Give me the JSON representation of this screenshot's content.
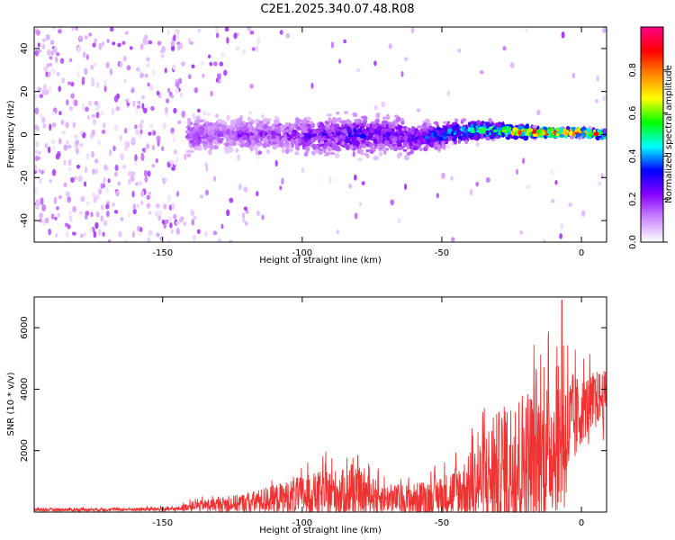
{
  "title": "C2E1.2025.340.07.48.R08",
  "chart_data": [
    {
      "type": "heatmap",
      "xlabel": "Height of straight line (km)",
      "ylabel": "Frequency (Hz)",
      "xlim": [
        -196,
        9
      ],
      "ylim": [
        -50,
        50
      ],
      "xticks": [
        -150,
        -100,
        -50,
        0
      ],
      "yticks": [
        -40,
        -20,
        0,
        20,
        40
      ],
      "description": "Normalized spectral amplitude vs height; scattered noise below -140 km, band converging to ~0 Hz and peaking near amplitude 1.0 at -20..0 km",
      "colorbar": {
        "label": "Normalized spectral amplitude",
        "range": [
          0.0,
          1.0
        ],
        "ticks": [
          "0.0",
          "0.2",
          "0.4",
          "0.6",
          "0.8"
        ],
        "colors": [
          "#ffffff",
          "#cc88ff",
          "#8800ff",
          "#0000ff",
          "#00ffff",
          "#00ff00",
          "#ffff00",
          "#ff8800",
          "#ff0000",
          "#ff0088"
        ]
      },
      "band": {
        "x": [
          -140,
          -130,
          -120,
          -110,
          -100,
          -90,
          -80,
          -70,
          -60,
          -50,
          -40,
          -30,
          -20,
          -10,
          0,
          8
        ],
        "center_hz": [
          0,
          0,
          0,
          0,
          -1,
          0,
          0,
          0,
          -2,
          0,
          2,
          2,
          1,
          1,
          1,
          0
        ],
        "halfwidth_hz": [
          9,
          8,
          8,
          8,
          9,
          9,
          10,
          9,
          8,
          6,
          5,
          4,
          3,
          2,
          2,
          2
        ],
        "amplitude": [
          0.2,
          0.18,
          0.2,
          0.2,
          0.25,
          0.28,
          0.3,
          0.28,
          0.3,
          0.4,
          0.5,
          0.6,
          0.85,
          0.9,
          0.95,
          0.7
        ]
      }
    },
    {
      "type": "line",
      "xlabel": "Height of straight line (km)",
      "ylabel": "SNR (10 * v/v)",
      "xlim": [
        -196,
        9
      ],
      "ylim": [
        0,
        7000
      ],
      "xticks": [
        -150,
        -100,
        -50,
        0
      ],
      "yticks": [
        2000,
        4000,
        6000
      ],
      "color": "#ee3333",
      "series": [
        {
          "name": "SNR",
          "x": [
            -196,
            -180,
            -160,
            -145,
            -140,
            -130,
            -120,
            -110,
            -100,
            -90,
            -80,
            -70,
            -60,
            -50,
            -40,
            -35,
            -30,
            -25,
            -20,
            -15,
            -10,
            -7,
            -5,
            0,
            5,
            9
          ],
          "base": [
            80,
            80,
            90,
            100,
            200,
            250,
            300,
            450,
            550,
            600,
            650,
            450,
            400,
            550,
            800,
            1100,
            1300,
            1500,
            1700,
            1900,
            2200,
            2500,
            2600,
            3300,
            3700,
            3800
          ],
          "amplitude": [
            60,
            60,
            60,
            80,
            150,
            250,
            350,
            500,
            700,
            900,
            800,
            500,
            600,
            700,
            1200,
            1800,
            2200,
            2500,
            2700,
            2500,
            2500,
            2800,
            2200,
            1200,
            1000,
            900
          ],
          "peak": {
            "x": -7,
            "y": 6900
          }
        }
      ]
    }
  ]
}
